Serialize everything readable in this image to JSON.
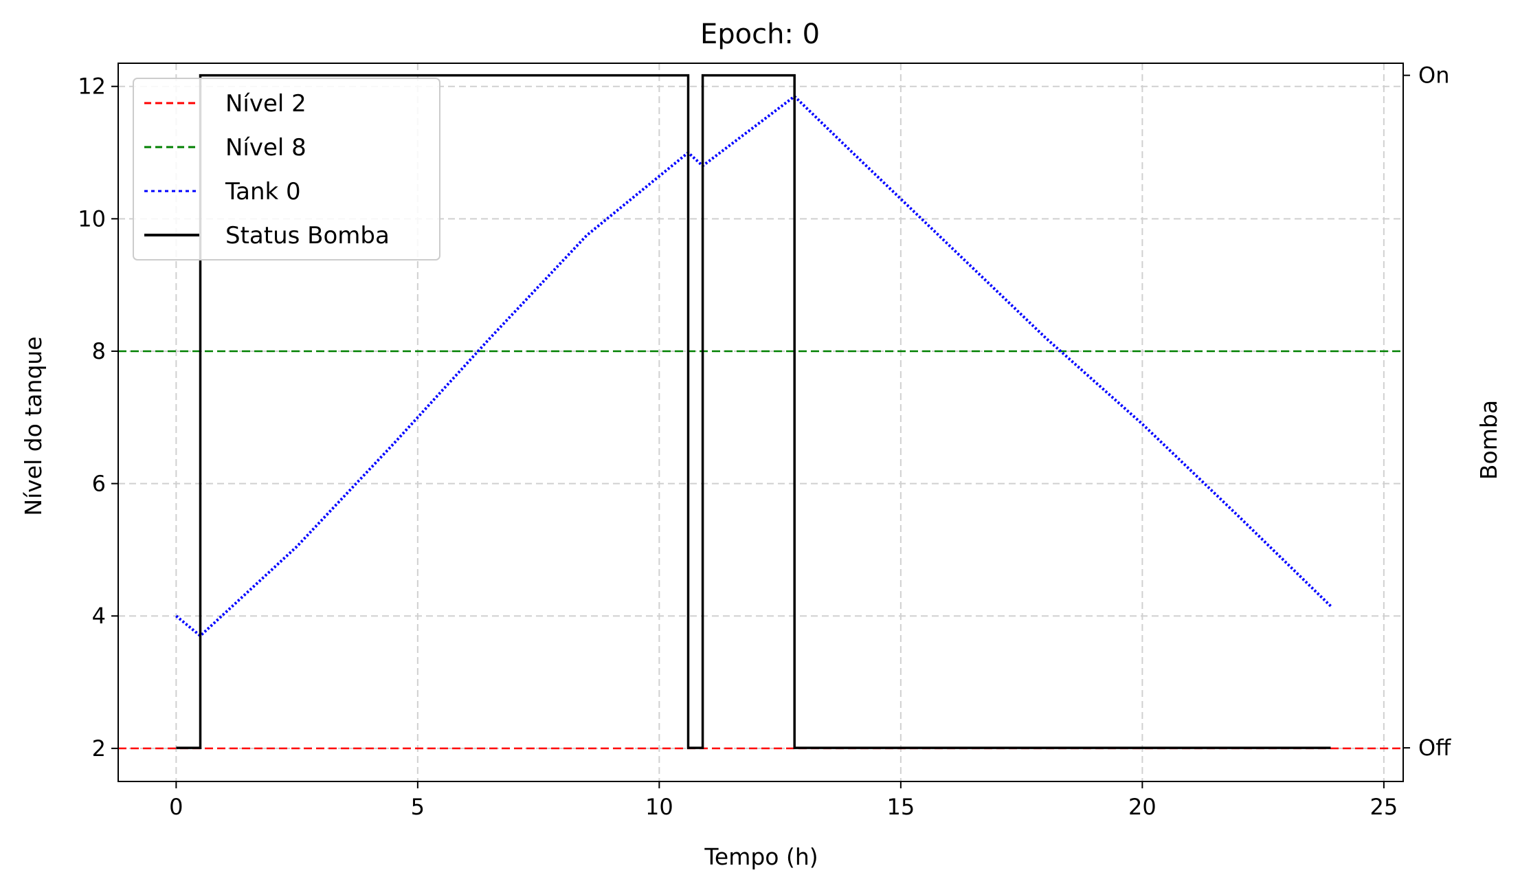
{
  "chart_data": {
    "type": "line",
    "title": "Epoch: 0",
    "xlabel": "Tempo (h)",
    "ylabel": "Nível do tanque",
    "y2label": "Bomba",
    "xlim": [
      -1.2,
      25.4
    ],
    "ylim": [
      1.5,
      12.35
    ],
    "y2lim": [
      -0.05,
      1.018
    ],
    "grid": true,
    "legend_position": "top-left",
    "x_ticks": [
      0,
      5,
      10,
      15,
      20,
      25
    ],
    "y_ticks": [
      2,
      4,
      6,
      8,
      10,
      12
    ],
    "y2_ticks": [
      {
        "value": 0,
        "label": "Off"
      },
      {
        "value": 1,
        "label": "On"
      }
    ],
    "hlines": [
      {
        "name": "Nível 2",
        "value": 2,
        "color": "#ff0000",
        "style": "dashed"
      },
      {
        "name": "Nível 8",
        "value": 8,
        "color": "#008000",
        "style": "dashed"
      }
    ],
    "series": [
      {
        "name": "Tank 0",
        "color": "#0000ff",
        "style": "dotted",
        "axis": "left",
        "x": [
          0,
          0.5,
          2.5,
          4.5,
          6.5,
          8.5,
          10.6,
          10.9,
          12.8,
          14,
          16,
          18,
          20,
          22,
          23.9
        ],
        "y": [
          4.0,
          3.7,
          5.05,
          6.6,
          8.2,
          9.75,
          11.0,
          10.8,
          11.85,
          11.0,
          9.6,
          8.2,
          6.9,
          5.5,
          4.15
        ]
      },
      {
        "name": "Status Bomba",
        "color": "#000000",
        "style": "solid",
        "axis": "right",
        "step": true,
        "x": [
          0,
          0.5,
          0.5,
          10.6,
          10.6,
          10.9,
          10.9,
          12.8,
          12.8,
          23.9
        ],
        "y": [
          0,
          0,
          1,
          1,
          0,
          0,
          1,
          1,
          0,
          0
        ]
      }
    ]
  }
}
